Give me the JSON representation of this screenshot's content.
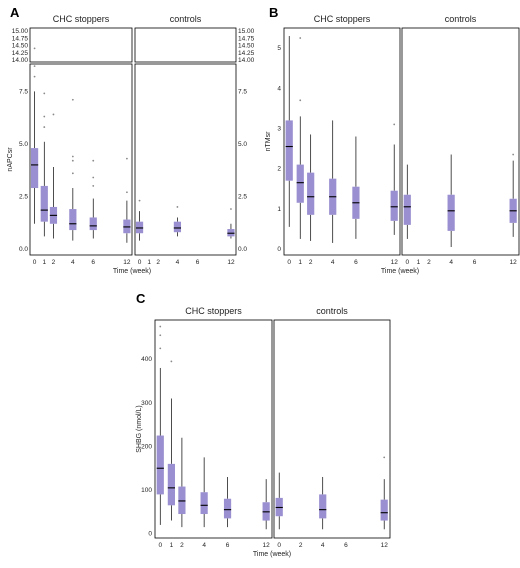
{
  "panels": [
    {
      "id": "A",
      "letter": "A",
      "facets": [
        "CHC stoppers",
        "controls"
      ],
      "ylabel": "nAPCsr",
      "xlabel": "Time (week)",
      "x_ticks": [
        0,
        1,
        2,
        4,
        6,
        12
      ],
      "upper_ylim": [
        14.0,
        15.0
      ],
      "upper_ticks": [
        "14.00",
        "14.25",
        "14.50",
        "14.75",
        "15.00"
      ],
      "lower_ylim": [
        0,
        8.8
      ],
      "lower_ticks": [
        "0.0",
        "2.5",
        "5.0",
        "7.5"
      ],
      "chart_data": {
        "type": "box",
        "series": [
          {
            "facet": "CHC stoppers",
            "boxes": [
              {
                "x": 0,
                "q1": 2.9,
                "median": 4.0,
                "q3": 4.8,
                "low": 1.2,
                "high": 7.5,
                "outliers": [
                  8.2,
                  8.7,
                  14.4
                ]
              },
              {
                "x": 1,
                "q1": 1.3,
                "median": 1.85,
                "q3": 3.0,
                "low": 0.6,
                "high": 5.1,
                "outliers": [
                  5.8,
                  6.3,
                  7.4
                ]
              },
              {
                "x": 2,
                "q1": 1.2,
                "median": 1.6,
                "q3": 2.0,
                "low": 0.5,
                "high": 3.9,
                "outliers": [
                  6.4
                ]
              },
              {
                "x": 4,
                "q1": 0.9,
                "median": 1.2,
                "q3": 1.9,
                "low": 0.4,
                "high": 2.9,
                "outliers": [
                  3.6,
                  4.2,
                  4.4,
                  7.1
                ]
              },
              {
                "x": 6,
                "q1": 0.9,
                "median": 1.1,
                "q3": 1.5,
                "low": 0.5,
                "high": 2.4,
                "outliers": [
                  3.0,
                  3.4,
                  4.2
                ]
              },
              {
                "x": 12,
                "q1": 0.75,
                "median": 1.05,
                "q3": 1.4,
                "low": 0.3,
                "high": 2.3,
                "outliers": [
                  2.7,
                  4.3
                ]
              }
            ]
          },
          {
            "facet": "controls",
            "boxes": [
              {
                "x": 0,
                "q1": 0.75,
                "median": 1.0,
                "q3": 1.3,
                "low": 0.4,
                "high": 1.8,
                "outliers": [
                  2.3
                ]
              },
              {
                "x": 4,
                "q1": 0.8,
                "median": 1.0,
                "q3": 1.3,
                "low": 0.6,
                "high": 1.5,
                "outliers": [
                  2.0
                ]
              },
              {
                "x": 12,
                "q1": 0.6,
                "median": 0.75,
                "q3": 0.95,
                "low": 0.5,
                "high": 1.2,
                "outliers": [
                  1.9
                ]
              }
            ]
          }
        ]
      }
    },
    {
      "id": "B",
      "letter": "B",
      "facets": [
        "CHC stoppers",
        "controls"
      ],
      "ylabel": "nTMsr",
      "xlabel": "Time (week)",
      "x_ticks": [
        0,
        1,
        2,
        4,
        6,
        12
      ],
      "ylim": [
        -0.15,
        5.5
      ],
      "y_ticks": [
        "0",
        "1",
        "2",
        "3",
        "4",
        "5"
      ],
      "chart_data": {
        "type": "box",
        "series": [
          {
            "facet": "CHC stoppers",
            "boxes": [
              {
                "x": 0,
                "q1": 1.7,
                "median": 2.55,
                "q3": 3.2,
                "low": 0.55,
                "high": 5.3,
                "outliers": []
              },
              {
                "x": 1,
                "q1": 1.15,
                "median": 1.65,
                "q3": 2.1,
                "low": 0.25,
                "high": 3.3,
                "outliers": [
                  3.7,
                  5.25
                ]
              },
              {
                "x": 2,
                "q1": 0.85,
                "median": 1.3,
                "q3": 1.9,
                "low": 0.2,
                "high": 2.85,
                "outliers": []
              },
              {
                "x": 4,
                "q1": 0.85,
                "median": 1.3,
                "q3": 1.75,
                "low": 0.15,
                "high": 3.2,
                "outliers": []
              },
              {
                "x": 6,
                "q1": 0.75,
                "median": 1.15,
                "q3": 1.55,
                "low": 0.25,
                "high": 2.8,
                "outliers": []
              },
              {
                "x": 12,
                "q1": 0.7,
                "median": 1.05,
                "q3": 1.45,
                "low": 0.35,
                "high": 2.6,
                "outliers": [
                  3.1
                ]
              }
            ]
          },
          {
            "facet": "controls",
            "boxes": [
              {
                "x": 0,
                "q1": 0.6,
                "median": 1.05,
                "q3": 1.35,
                "low": 0.25,
                "high": 2.1,
                "outliers": []
              },
              {
                "x": 4,
                "q1": 0.45,
                "median": 0.95,
                "q3": 1.35,
                "low": 0.05,
                "high": 2.35,
                "outliers": []
              },
              {
                "x": 12,
                "q1": 0.65,
                "median": 0.95,
                "q3": 1.25,
                "low": 0.3,
                "high": 2.2,
                "outliers": [
                  2.35
                ]
              }
            ]
          }
        ]
      }
    },
    {
      "id": "C",
      "letter": "C",
      "facets": [
        "CHC stoppers",
        "controls"
      ],
      "ylabel": "SHBG (nmol/L)",
      "xlabel": "Time (week)",
      "x_ticks": [
        0,
        1,
        2,
        4,
        6,
        12
      ],
      "x_tick_labels_stoppers": [
        "0",
        "1",
        "2",
        "4",
        "6",
        "12"
      ],
      "x_tick_labels_controls": [
        "0",
        "",
        "2",
        "4",
        "6",
        "12"
      ],
      "ylim": [
        -10,
        490
      ],
      "y_ticks": [
        "0",
        "100",
        "200",
        "300",
        "400"
      ],
      "chart_data": {
        "type": "box",
        "series": [
          {
            "facet": "CHC stoppers",
            "boxes": [
              {
                "x": 0,
                "q1": 90,
                "median": 150,
                "q3": 225,
                "low": 20,
                "high": 380,
                "outliers": [
                  425,
                  455,
                  475
                ]
              },
              {
                "x": 1,
                "q1": 65,
                "median": 105,
                "q3": 160,
                "low": 30,
                "high": 310,
                "outliers": [
                  395
                ]
              },
              {
                "x": 2,
                "q1": 45,
                "median": 75,
                "q3": 108,
                "low": 15,
                "high": 220,
                "outliers": []
              },
              {
                "x": 4,
                "q1": 45,
                "median": 65,
                "q3": 95,
                "low": 15,
                "high": 175,
                "outliers": []
              },
              {
                "x": 6,
                "q1": 35,
                "median": 55,
                "q3": 80,
                "low": 15,
                "high": 130,
                "outliers": []
              },
              {
                "x": 12,
                "q1": 30,
                "median": 50,
                "q3": 72,
                "low": 10,
                "high": 125,
                "outliers": []
              }
            ]
          },
          {
            "facet": "controls",
            "boxes": [
              {
                "x": 0,
                "q1": 40,
                "median": 60,
                "q3": 82,
                "low": 10,
                "high": 140,
                "outliers": []
              },
              {
                "x": 4,
                "q1": 35,
                "median": 55,
                "q3": 90,
                "low": 10,
                "high": 130,
                "outliers": []
              },
              {
                "x": 12,
                "q1": 30,
                "median": 48,
                "q3": 78,
                "low": 10,
                "high": 125,
                "outliers": [
                  175
                ]
              }
            ]
          }
        ]
      }
    }
  ]
}
